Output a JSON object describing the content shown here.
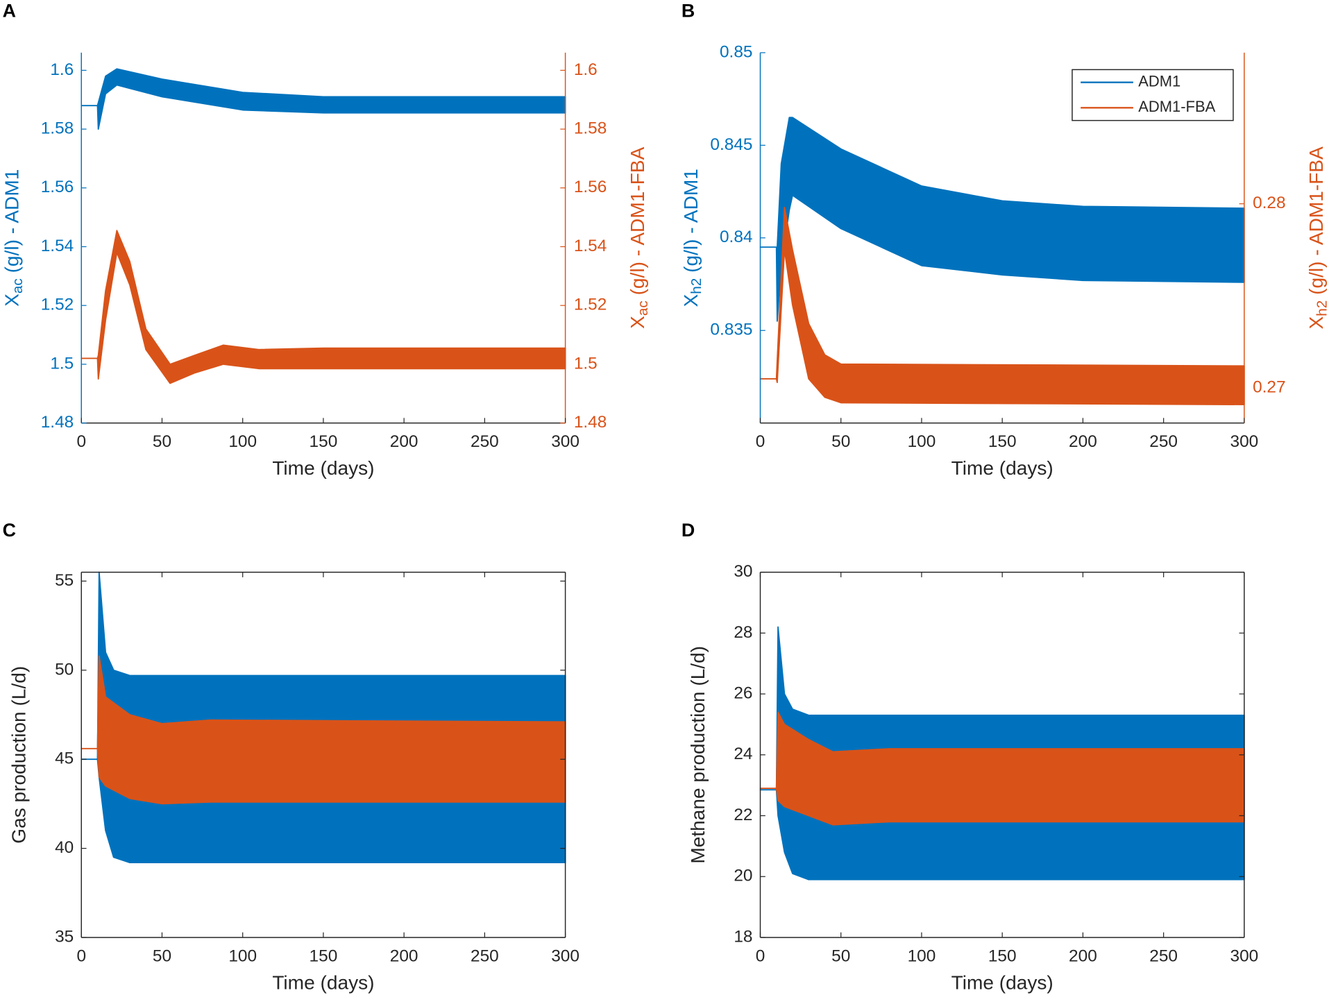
{
  "chart_data": [
    {
      "type": "band",
      "panel_label": "A",
      "xlabel": "Time (days)",
      "ylabel": {
        "text": "X",
        "sub": "ac",
        "rest": " (g/l) - ADM1"
      },
      "y2label": {
        "text": "X",
        "sub": "ac",
        "rest": " (g/l) - ADM1-FBA"
      },
      "xlim": [
        0,
        300
      ],
      "xticks": [
        0,
        50,
        100,
        150,
        200,
        250,
        300
      ],
      "ylim": [
        1.48,
        1.606
      ],
      "yticks": [
        1.48,
        1.5,
        1.52,
        1.54,
        1.56,
        1.58,
        1.6
      ],
      "y2lim": [
        1.48,
        1.606
      ],
      "y2ticks": [
        1.48,
        1.5,
        1.52,
        1.54,
        1.56,
        1.58,
        1.6
      ],
      "series": [
        {
          "color": "#0072bd",
          "axis": "y",
          "x": [
            0,
            10,
            10.5,
            15,
            22,
            50,
            100,
            150,
            300
          ],
          "high": [
            1.588,
            1.588,
            1.589,
            1.598,
            1.6005,
            1.597,
            1.5925,
            1.591,
            1.591
          ],
          "low": [
            1.588,
            1.588,
            1.58,
            1.592,
            1.595,
            1.591,
            1.5865,
            1.5855,
            1.5855
          ]
        },
        {
          "color": "#d95319",
          "axis": "y2",
          "x": [
            0,
            10,
            10.5,
            15,
            22,
            30,
            40,
            55,
            70,
            88,
            110,
            150,
            300
          ],
          "high": [
            1.502,
            1.502,
            1.503,
            1.525,
            1.5455,
            1.535,
            1.512,
            1.5,
            1.503,
            1.5065,
            1.505,
            1.5055,
            1.5055
          ],
          "low": [
            1.502,
            1.502,
            1.495,
            1.515,
            1.538,
            1.527,
            1.505,
            1.4935,
            1.497,
            1.5,
            1.4985,
            1.4985,
            1.4985
          ]
        }
      ]
    },
    {
      "type": "band",
      "panel_label": "B",
      "xlabel": "Time (days)",
      "ylabel": {
        "text": "X",
        "sub": "h2",
        "rest": " (g/l) - ADM1"
      },
      "y2label": {
        "text": "X",
        "sub": "h2",
        "rest": " (g/l) - ADM1-FBA"
      },
      "xlim": [
        0,
        300
      ],
      "xticks": [
        0,
        50,
        100,
        150,
        200,
        250,
        300
      ],
      "ylim": [
        0.83,
        0.85
      ],
      "yticks": [
        0.835,
        0.84,
        0.845,
        0.85
      ],
      "y2lim": [
        0.2681,
        0.2882
      ],
      "y2ticks": [
        0.27,
        0.28
      ],
      "legend": "upper right",
      "series": [
        {
          "name": "ADM1",
          "color": "#0072bd",
          "axis": "y",
          "x": [
            0,
            10,
            10.5,
            13,
            18,
            20,
            50,
            100,
            150,
            200,
            300
          ],
          "high": [
            0.8395,
            0.8395,
            0.8395,
            0.844,
            0.8465,
            0.8465,
            0.8448,
            0.8428,
            0.842,
            0.8417,
            0.8416
          ],
          "low": [
            0.8395,
            0.8395,
            0.8355,
            0.8385,
            0.8415,
            0.8423,
            0.8405,
            0.8385,
            0.838,
            0.8377,
            0.8376
          ]
        },
        {
          "name": "ADM1-FBA",
          "color": "#d95319",
          "axis": "y2",
          "x": [
            0,
            10,
            10.5,
            15,
            20,
            30,
            40,
            50,
            300
          ],
          "high": [
            0.2705,
            0.2705,
            0.2715,
            0.2798,
            0.2775,
            0.2735,
            0.2718,
            0.2713,
            0.2712
          ],
          "low": [
            0.2705,
            0.2705,
            0.2703,
            0.2775,
            0.2745,
            0.2705,
            0.2695,
            0.2692,
            0.2691
          ]
        }
      ]
    },
    {
      "type": "band",
      "panel_label": "C",
      "xlabel": "Time (days)",
      "ylabel": "Gas production (L/d)",
      "xlim": [
        0,
        300
      ],
      "xticks": [
        0,
        50,
        100,
        150,
        200,
        250,
        300
      ],
      "ylim": [
        35,
        55.5
      ],
      "yticks": [
        35,
        40,
        45,
        50,
        55
      ],
      "box": true,
      "series": [
        {
          "color": "#0072bd",
          "axis": "y",
          "x": [
            0,
            10,
            11,
            15,
            20,
            30,
            300
          ],
          "high": [
            45,
            45,
            55.5,
            51,
            50,
            49.7,
            49.7
          ],
          "low": [
            45,
            45,
            44,
            41,
            39.5,
            39.2,
            39.2
          ]
        },
        {
          "color": "#d95319",
          "axis": "y",
          "x": [
            0,
            10,
            11,
            15,
            30,
            50,
            80,
            300
          ],
          "high": [
            45.6,
            45.6,
            50.8,
            48.5,
            47.5,
            47,
            47.2,
            47.1
          ],
          "low": [
            45.6,
            45.6,
            44,
            43.5,
            42.8,
            42.5,
            42.6,
            42.6
          ]
        }
      ]
    },
    {
      "type": "band",
      "panel_label": "D",
      "xlabel": "Time (days)",
      "ylabel": "Methane production (L/d)",
      "xlim": [
        0,
        300
      ],
      "xticks": [
        0,
        50,
        100,
        150,
        200,
        250,
        300
      ],
      "ylim": [
        18,
        30
      ],
      "yticks": [
        18,
        20,
        22,
        24,
        26,
        28,
        30
      ],
      "box": true,
      "series": [
        {
          "color": "#0072bd",
          "axis": "y",
          "x": [
            0,
            10,
            11,
            15,
            20,
            30,
            300
          ],
          "high": [
            22.85,
            22.85,
            28.2,
            26,
            25.5,
            25.3,
            25.3
          ],
          "low": [
            22.85,
            22.85,
            22,
            20.8,
            20.1,
            19.9,
            19.9
          ]
        },
        {
          "color": "#d95319",
          "axis": "y",
          "x": [
            0,
            10,
            11,
            15,
            30,
            45,
            80,
            300
          ],
          "high": [
            22.9,
            22.9,
            25.4,
            25,
            24.5,
            24.1,
            24.2,
            24.2
          ],
          "low": [
            22.9,
            22.9,
            22.5,
            22.3,
            22,
            21.7,
            21.8,
            21.8
          ]
        }
      ]
    }
  ]
}
